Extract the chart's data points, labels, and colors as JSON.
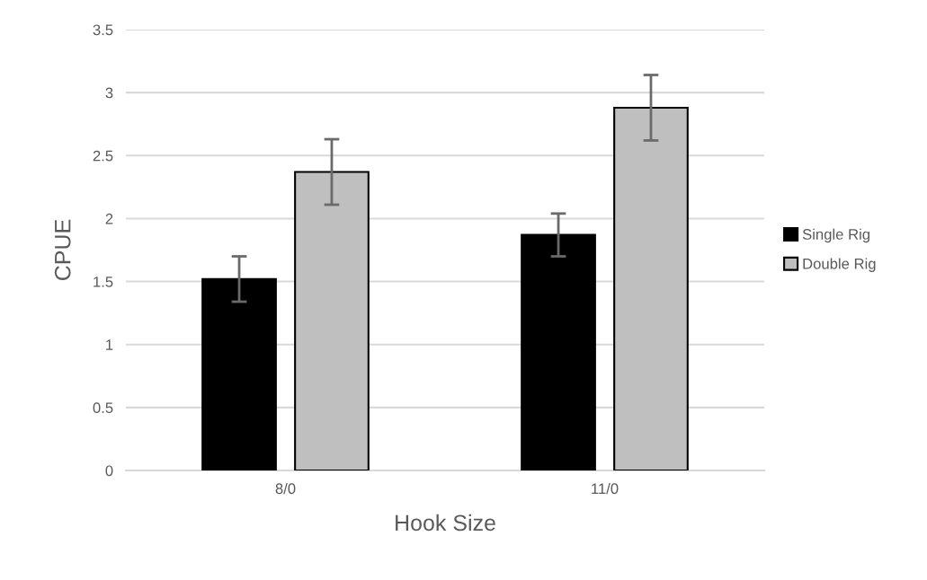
{
  "chart_data": {
    "type": "bar",
    "xlabel": "Hook Size",
    "ylabel": "CPUE",
    "categories": [
      "8/0",
      "11/0"
    ],
    "series": [
      {
        "name": "Single Rig",
        "color": "#000000",
        "values": [
          1.52,
          1.87
        ],
        "errors": [
          0.18,
          0.17
        ]
      },
      {
        "name": "Double Rig",
        "color": "#bfbfbf",
        "values": [
          2.37,
          2.88
        ],
        "errors": [
          0.26,
          0.26
        ]
      }
    ],
    "ylim": [
      0,
      3.5
    ],
    "yticks": [
      0,
      0.5,
      1,
      1.5,
      2,
      2.5,
      3,
      3.5
    ],
    "grid": "y",
    "legend": "right"
  }
}
